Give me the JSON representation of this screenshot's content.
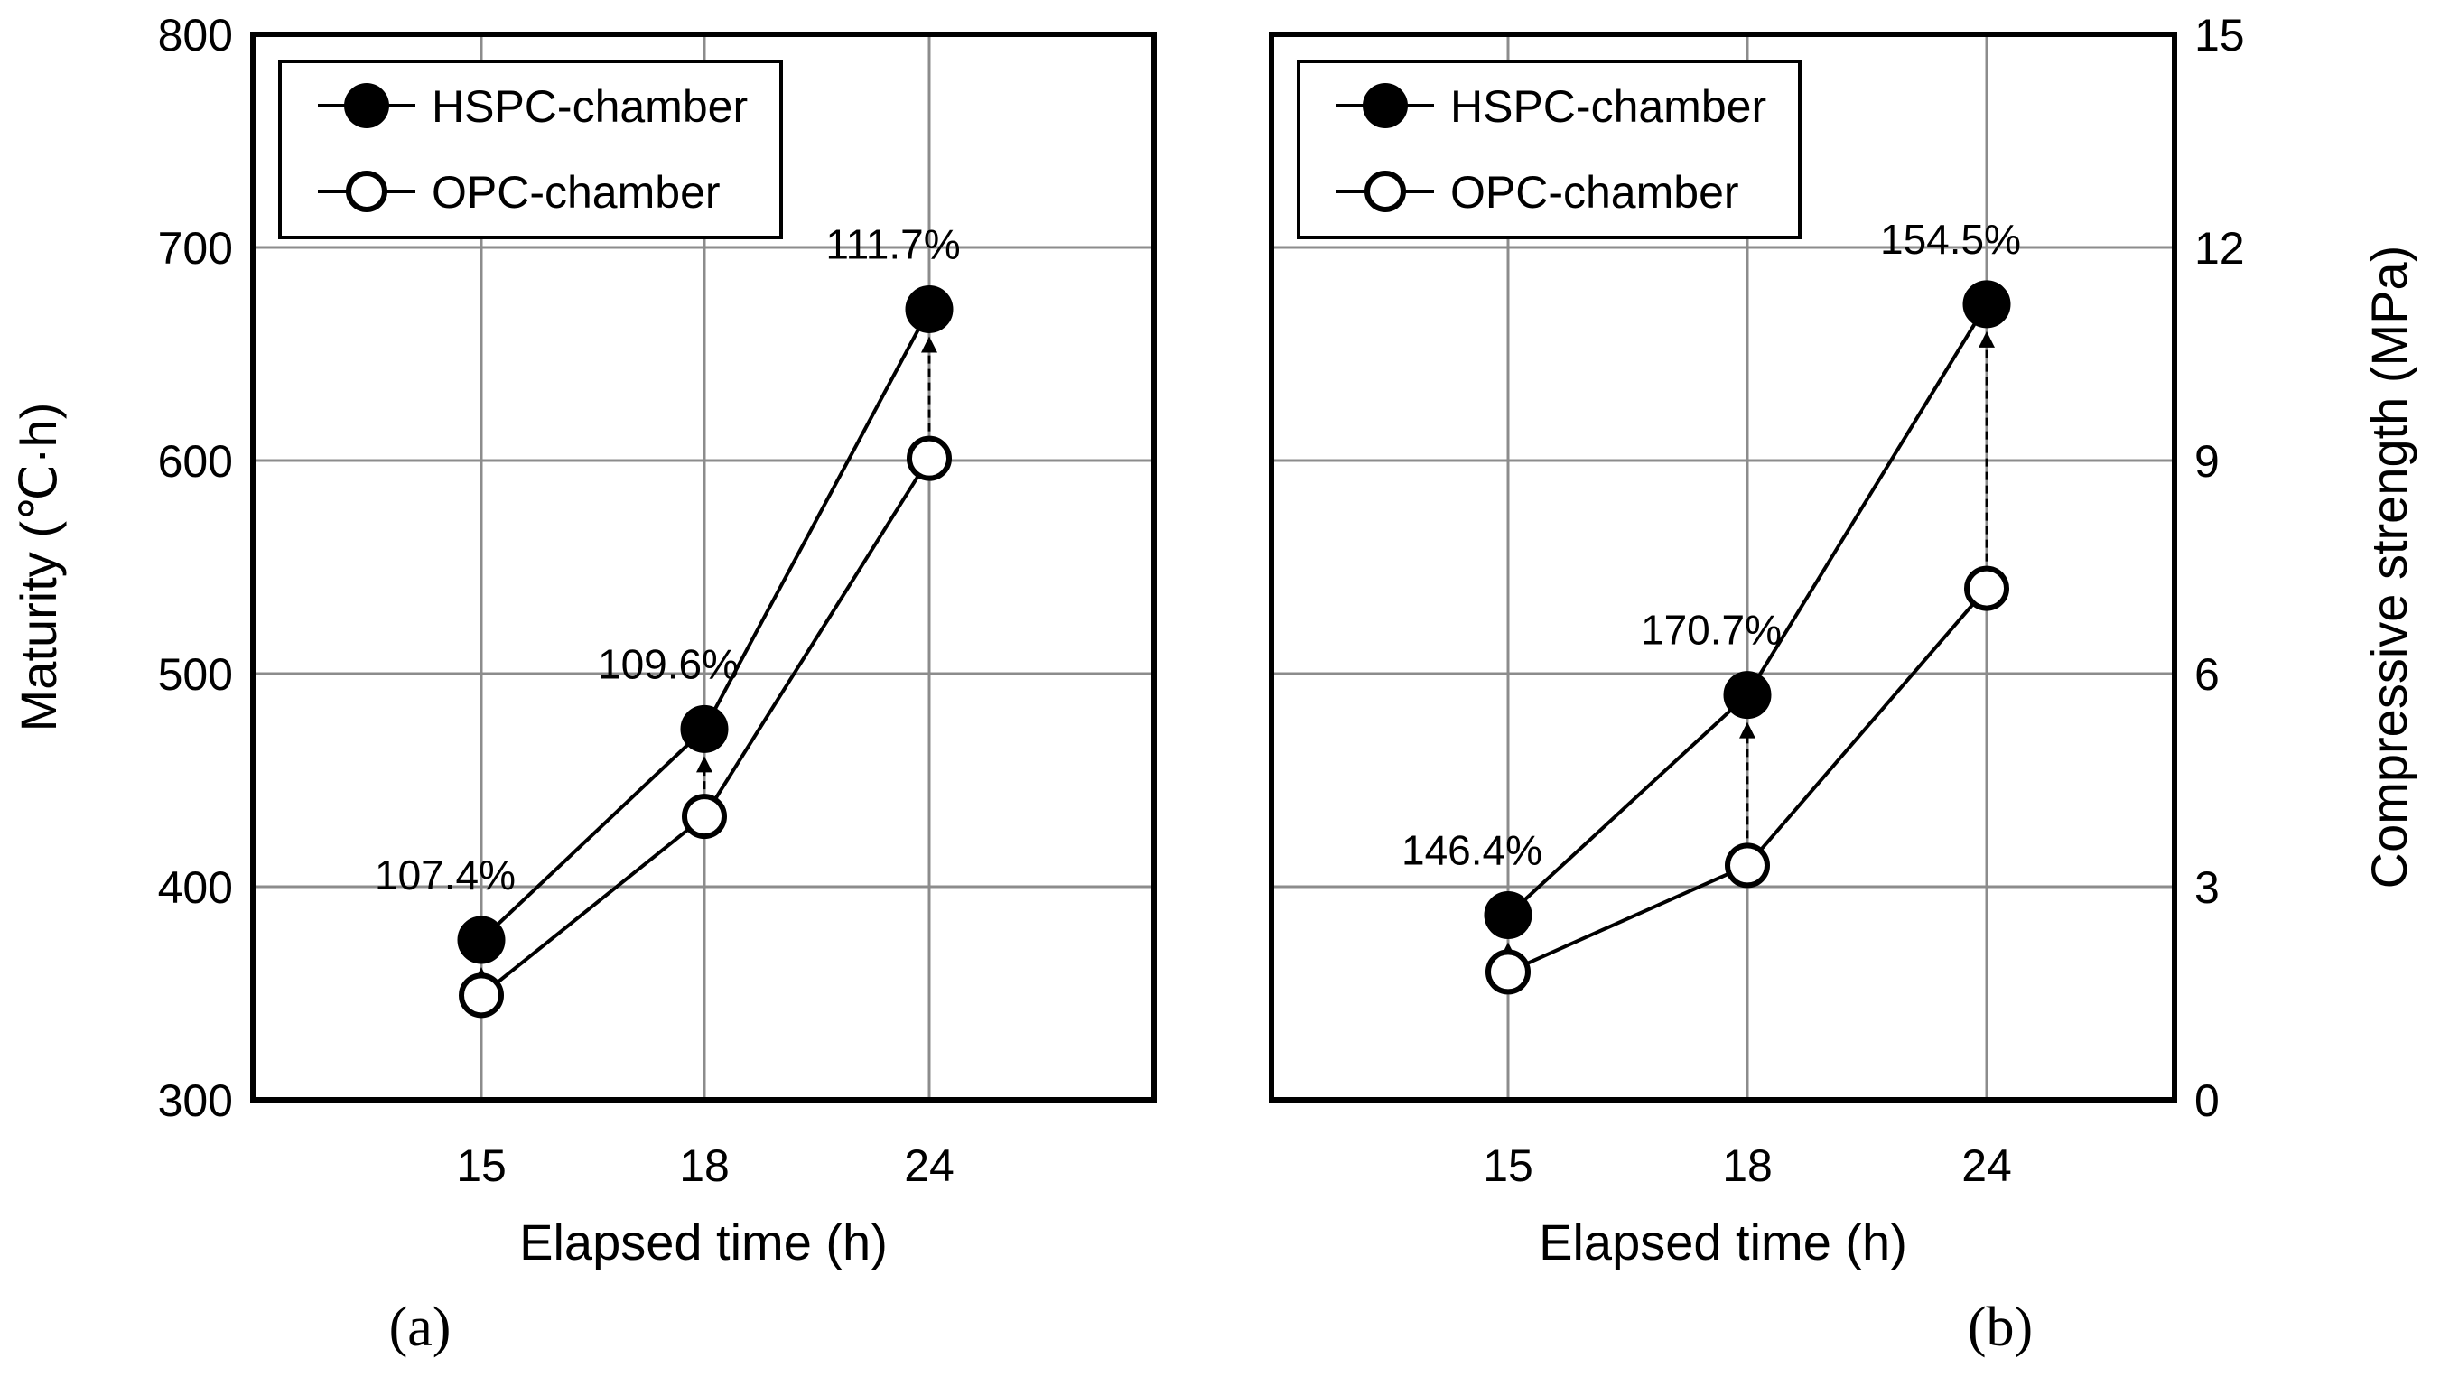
{
  "chart_data": [
    {
      "type": "line",
      "panel_label": "(a)",
      "x": [
        15,
        18,
        24
      ],
      "xlabel": "Elapsed time (h)",
      "ylabel": "Maturity (℃·h)",
      "ylim": [
        300,
        800
      ],
      "yticks": [
        300,
        400,
        500,
        600,
        700,
        800
      ],
      "grid": true,
      "legend_position": "top-left",
      "series": [
        {
          "name": "HSPC-chamber",
          "marker": "filled-circle",
          "values": [
            375,
            474,
            671
          ]
        },
        {
          "name": "OPC-chamber",
          "marker": "open-circle",
          "values": [
            349,
            433,
            601
          ]
        }
      ],
      "annotations": [
        "107.4%",
        "109.6%",
        "111.7%"
      ]
    },
    {
      "type": "line",
      "panel_label": "(b)",
      "x": [
        15,
        18,
        24
      ],
      "xlabel": "Elapsed time (h)",
      "ylabel": "Compressive strength (MPa)",
      "ylim": [
        0,
        15
      ],
      "yticks": [
        0,
        3,
        6,
        9,
        12,
        15
      ],
      "grid": true,
      "legend_position": "top-left",
      "series": [
        {
          "name": "HSPC-chamber",
          "marker": "filled-circle",
          "values": [
            2.6,
            5.7,
            11.2
          ]
        },
        {
          "name": "OPC-chamber",
          "marker": "open-circle",
          "values": [
            1.8,
            3.3,
            7.2
          ]
        }
      ],
      "annotations": [
        "146.4%",
        "170.7%",
        "154.5%"
      ]
    }
  ]
}
